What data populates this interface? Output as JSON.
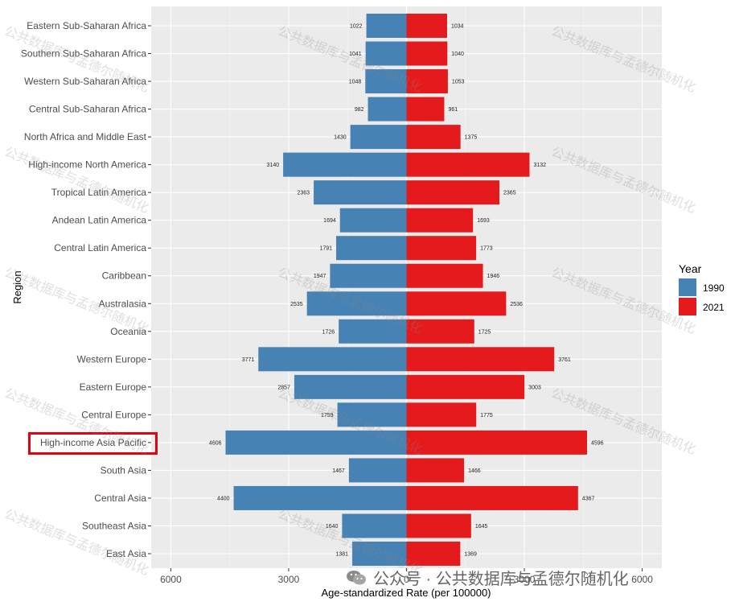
{
  "chart_data": {
    "type": "bar",
    "orientation": "horizontal-back-to-back",
    "xlabel": "Age-standardized Rate (per 100000)",
    "ylabel": "Region",
    "xlim": [
      -6500,
      6500
    ],
    "x_tick_labels": [
      "6000",
      "3000",
      "0",
      "3000",
      "6000"
    ],
    "x_tick_values": [
      -6000,
      -3000,
      0,
      3000,
      6000
    ],
    "grid": true,
    "legend_position": "right",
    "legend_title": "Year",
    "categories": [
      "Eastern Sub-Saharan Africa",
      "Southern Sub-Saharan Africa",
      "Western Sub-Saharan Africa",
      "Central Sub-Saharan Africa",
      "North Africa and Middle East",
      "High-income North America",
      "Tropical Latin America",
      "Andean Latin America",
      "Central Latin America",
      "Caribbean",
      "Australasia",
      "Oceania",
      "Western Europe",
      "Eastern Europe",
      "Central Europe",
      "High-income Asia Pacific",
      "South Asia",
      "Central Asia",
      "Southeast Asia",
      "East Asia"
    ],
    "series": [
      {
        "name": "1990",
        "color": "#4682b4",
        "side": "left",
        "values": [
          1022,
          1041,
          1048,
          982,
          1430,
          3140,
          2363,
          1694,
          1791,
          1947,
          2535,
          1726,
          3771,
          2857,
          1759,
          4606,
          1467,
          4400,
          1640,
          1381
        ]
      },
      {
        "name": "2021",
        "color": "#e41a1c",
        "side": "right",
        "values": [
          1034,
          1040,
          1053,
          961,
          1375,
          3132,
          2365,
          1693,
          1773,
          1946,
          2536,
          1725,
          3761,
          3003,
          1775,
          4596,
          1466,
          4367,
          1645,
          1369
        ]
      }
    ],
    "highlighted_category": "High-income Asia Pacific",
    "highlight_color": "#e60012"
  },
  "watermark": {
    "text": "公共数据库与孟德尔随机化",
    "footer_text": "公众号 · 公共数据库与孟德尔随机化"
  }
}
